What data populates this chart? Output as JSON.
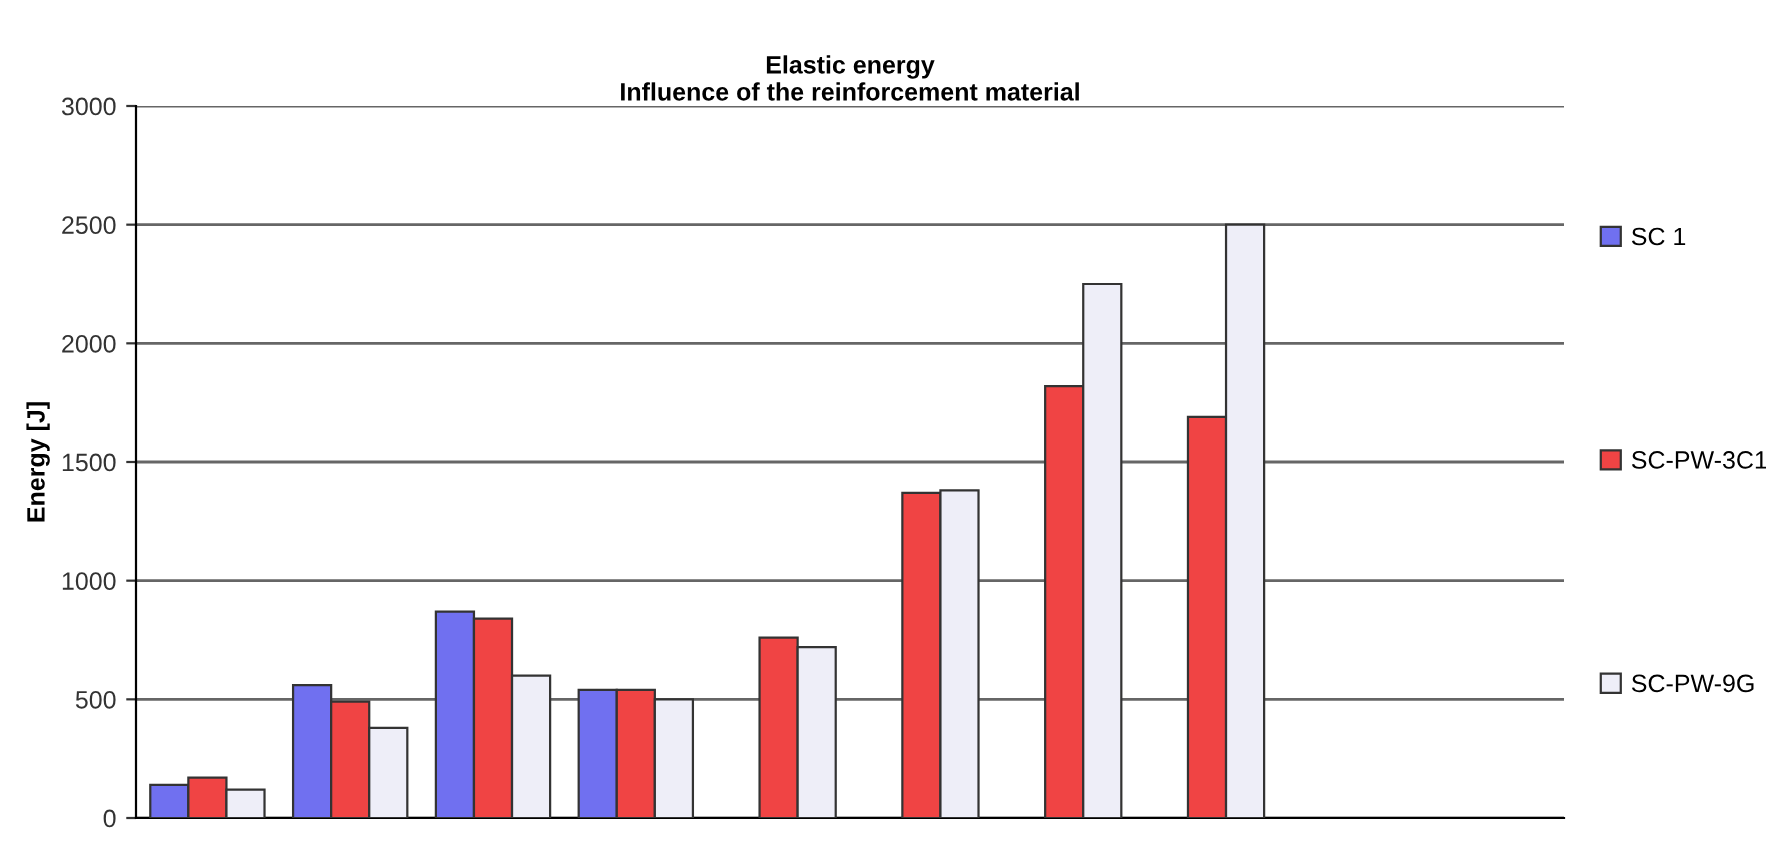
{
  "chart_data": {
    "type": "bar",
    "title": "Elastic energy\nInfluence of the reinforcement material",
    "ylabel": "Energy [J]",
    "categories": [
      null,
      null,
      null,
      null,
      null,
      null,
      null,
      null,
      null,
      null
    ],
    "series": [
      {
        "name": "SC 1",
        "color": "#7070f0",
        "values": [
          140,
          560,
          870,
          540,
          null,
          null,
          null,
          null,
          null,
          null
        ]
      },
      {
        "name": "SC-PW-3C1",
        "color": "#f04444",
        "values": [
          170,
          490,
          840,
          540,
          760,
          1370,
          1820,
          1690,
          null,
          null
        ]
      },
      {
        "name": "SC-PW-9G",
        "color": "#eeeef8",
        "values": [
          120,
          380,
          600,
          500,
          720,
          1380,
          2250,
          2500,
          null,
          null
        ]
      }
    ],
    "ylim": [
      0,
      3000
    ],
    "yticks": [
      0,
      500,
      1000,
      1500,
      2000,
      2500,
      3000
    ],
    "grid": "y",
    "legend": "right"
  }
}
